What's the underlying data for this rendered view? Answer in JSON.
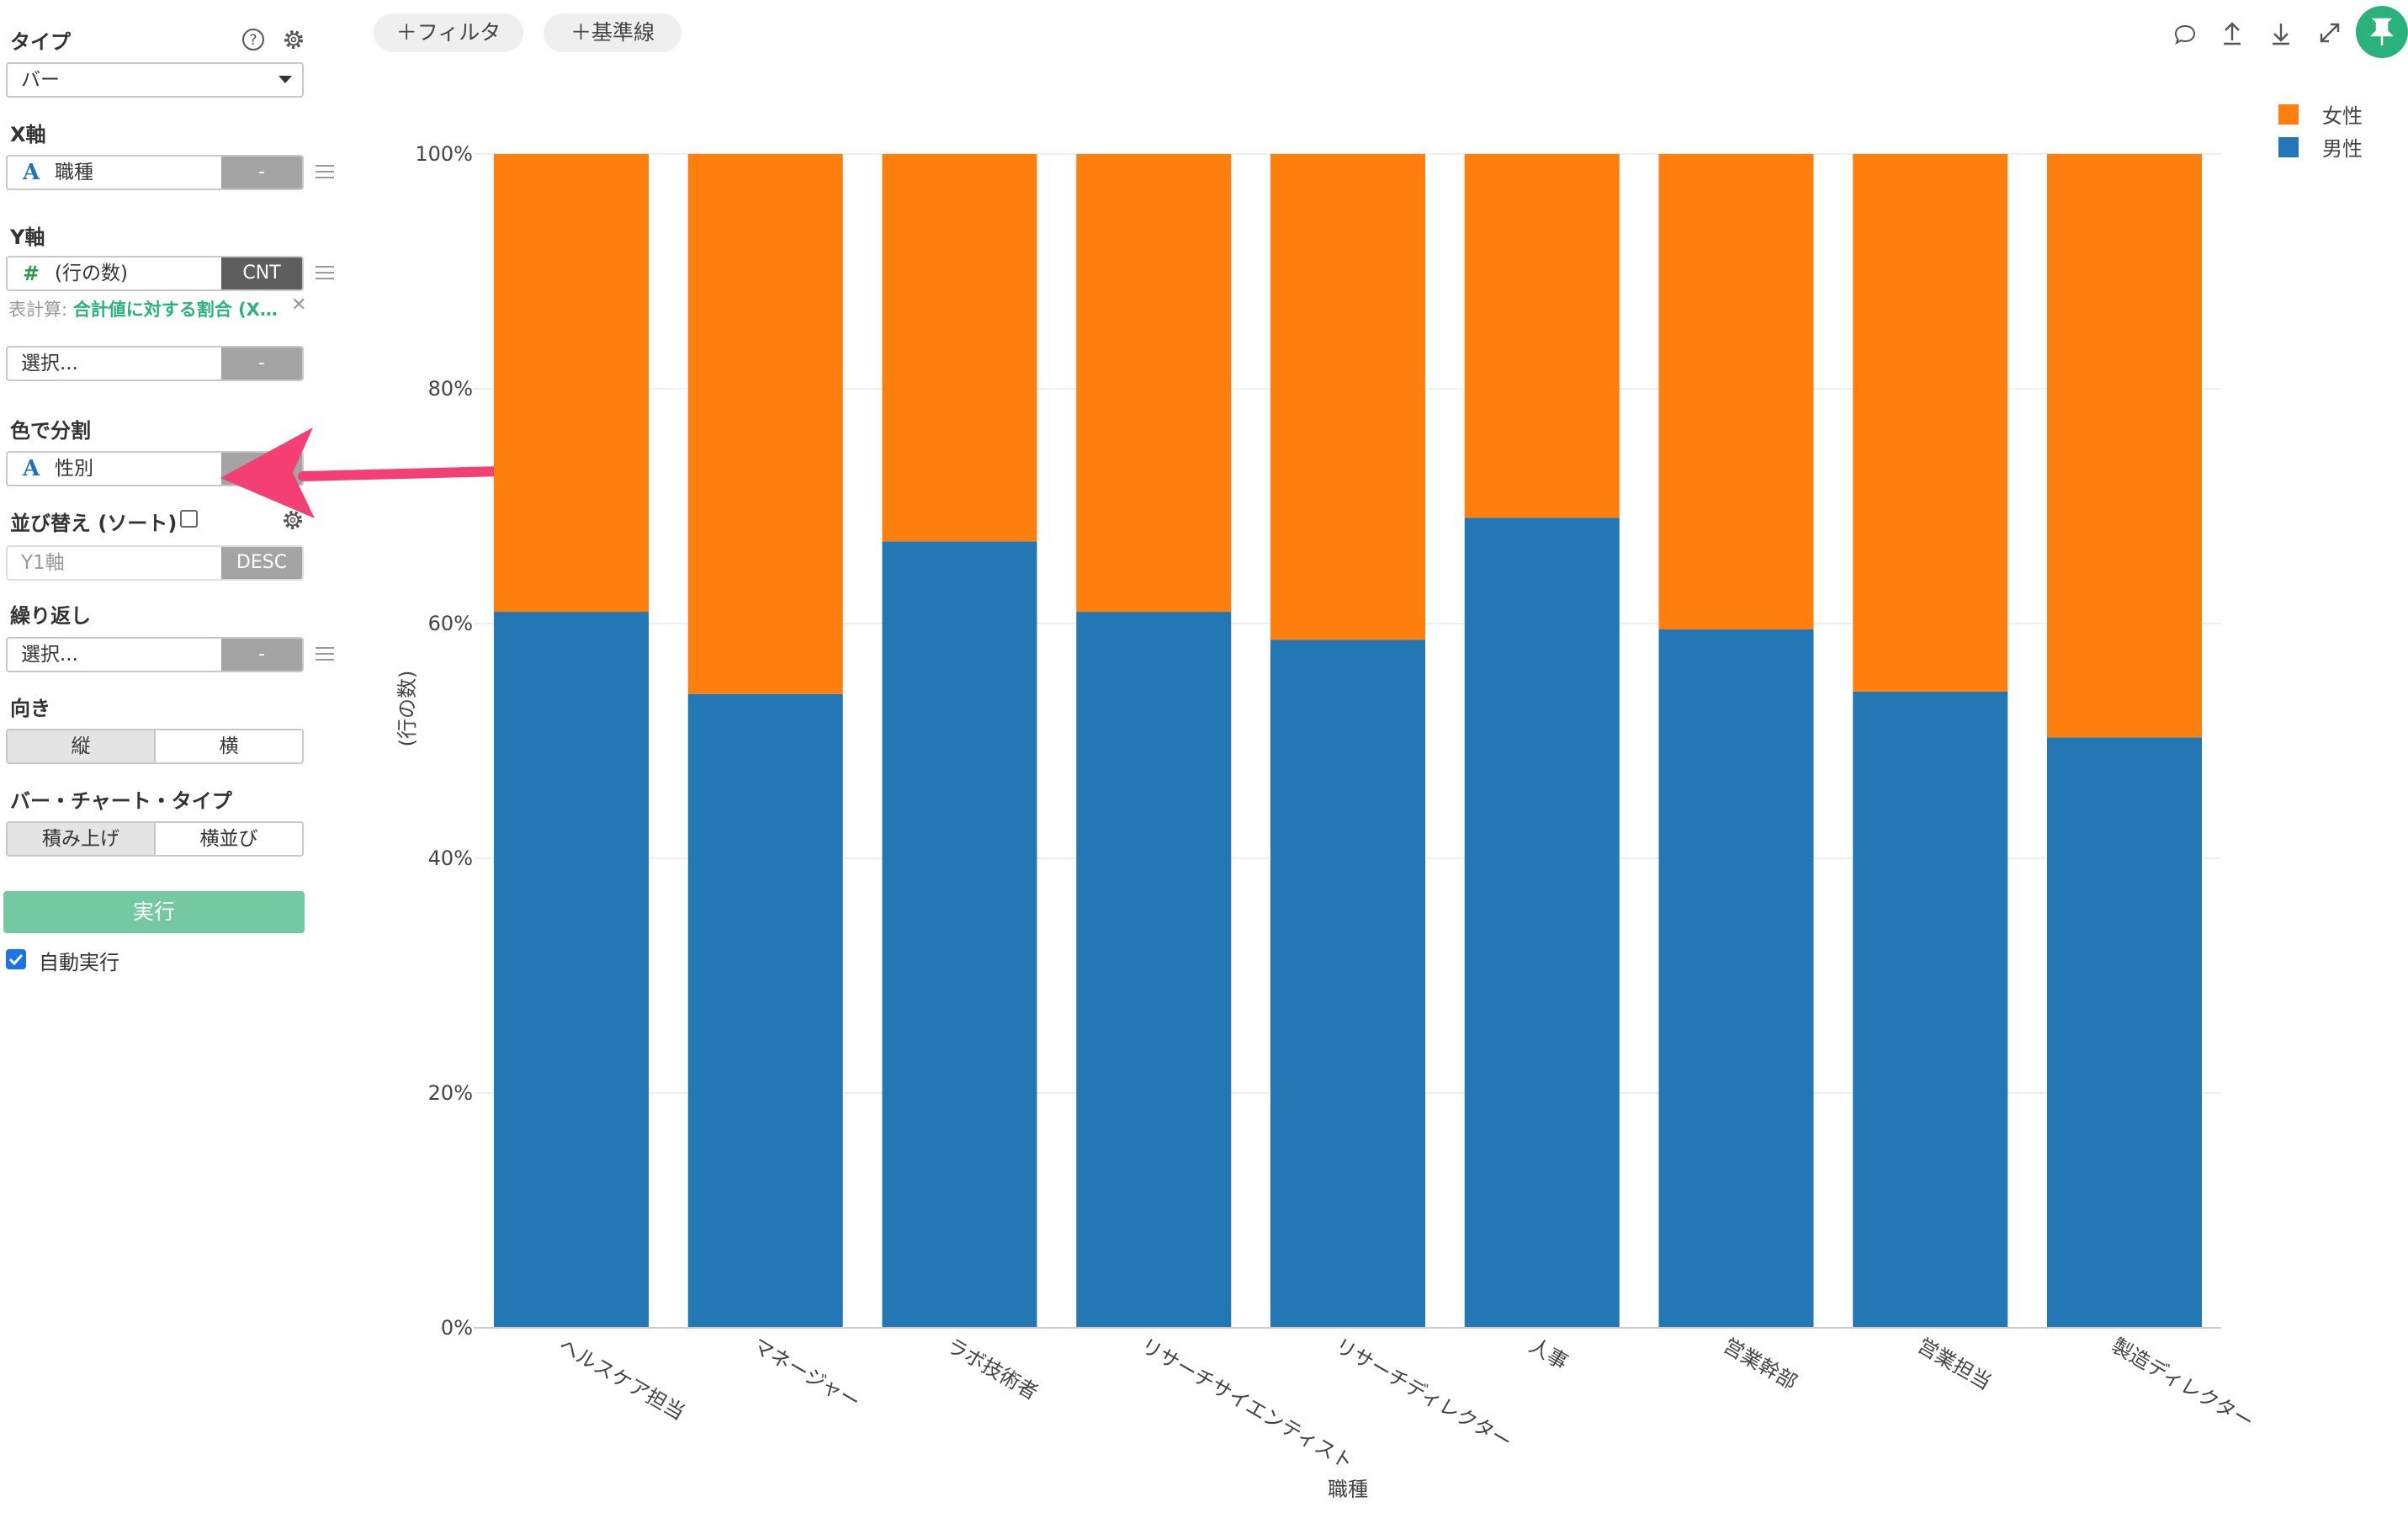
{
  "sidebar": {
    "type": {
      "label": "タイプ",
      "value": "バー"
    },
    "x_axis": {
      "label": "X軸",
      "value": "職種",
      "icon": "A",
      "btn": "-"
    },
    "y_axis": {
      "label": "Y軸",
      "value": "(行の数)",
      "icon": "#",
      "btn": "CNT",
      "calc_label": "表計算:",
      "calc_value": "合計値に対する割合 (X…"
    },
    "y2": {
      "value": "選択...",
      "btn": "-"
    },
    "color_split": {
      "label": "色で分割",
      "value": "性別",
      "icon": "A"
    },
    "sort": {
      "label": "並び替え (ソート)",
      "placeholder": "Y1軸",
      "btn": "DESC"
    },
    "repeat": {
      "label": "繰り返し",
      "value": "選択...",
      "btn": "-"
    },
    "orientation": {
      "label": "向き",
      "options": [
        "縦",
        "横"
      ],
      "selected": "縦"
    },
    "bar_type": {
      "label": "バー・チャート・タイプ",
      "options": [
        "積み上げ",
        "横並び"
      ],
      "selected": "積み上げ"
    },
    "run_label": "実行",
    "auto_run_label": "自動実行"
  },
  "toolbar": {
    "filter_label": "フィルタ",
    "refline_label": "基準線"
  },
  "colors": {
    "male": "#2277b4",
    "female": "#fe7f0e",
    "run": "#74c9a3",
    "pin": "#2ab27b",
    "arrow": "#f33f74"
  },
  "chart_data": {
    "type": "bar",
    "stacked": true,
    "categories": [
      "ヘルスケア担当",
      "マネージャー",
      "ラボ技術者",
      "リサーチサイエンティスト",
      "リサーチディレクター",
      "人事",
      "営業幹部",
      "営業担当",
      "製造ディレクター"
    ],
    "series": [
      {
        "name": "男性",
        "values": [
          61,
          54,
          67,
          61,
          58.6,
          69,
          59.5,
          54.2,
          50.3
        ]
      },
      {
        "name": "女性",
        "values": [
          39,
          46,
          33,
          39,
          41.4,
          31,
          40.5,
          45.8,
          49.7
        ]
      }
    ],
    "legend": [
      "女性",
      "男性"
    ],
    "xlabel": "職種",
    "ylabel": "(行の数)",
    "ylim": [
      0,
      100
    ],
    "yticks": [
      "0%",
      "20%",
      "40%",
      "60%",
      "80%",
      "100%"
    ],
    "grid": true
  }
}
